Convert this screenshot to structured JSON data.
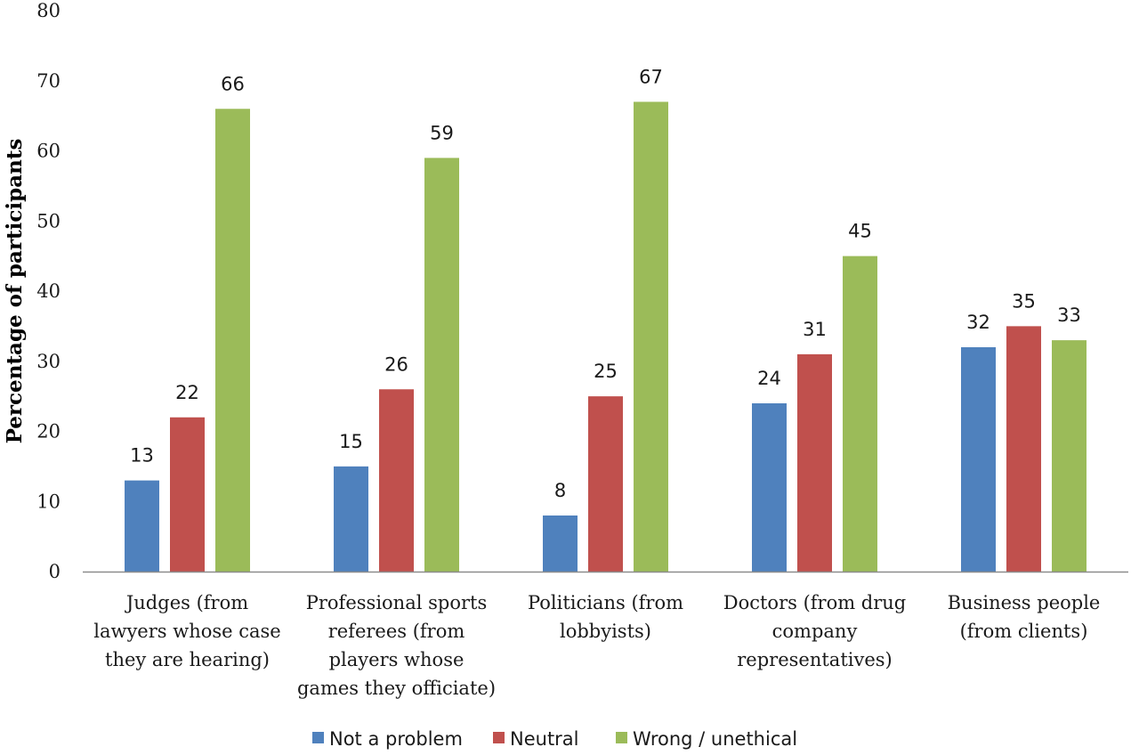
{
  "chart_data": {
    "type": "bar",
    "title": "",
    "xlabel": "",
    "ylabel": "Percentage of participants",
    "ylim": [
      0,
      80
    ],
    "yticks": [
      0,
      10,
      20,
      30,
      40,
      50,
      60,
      70,
      80
    ],
    "grid": false,
    "legend_position": "bottom",
    "categories": [
      [
        "Judges (from",
        "lawyers whose case",
        "they are hearing)"
      ],
      [
        "Professional sports",
        "referees (from",
        "players whose",
        "games they officiate)"
      ],
      [
        "Politicians (from",
        "lobbyists)"
      ],
      [
        "Doctors (from drug",
        "company",
        "representatives)"
      ],
      [
        "Business people",
        "(from clients)"
      ]
    ],
    "series": [
      {
        "name": "Not a problem",
        "color": "#4f81bd",
        "values": [
          13,
          15,
          8,
          24,
          32
        ]
      },
      {
        "name": "Neutral",
        "color": "#c0504d",
        "values": [
          22,
          26,
          25,
          31,
          35
        ]
      },
      {
        "name": "Wrong / unethical",
        "color": "#9bbb59",
        "values": [
          66,
          59,
          67,
          45,
          33
        ]
      }
    ]
  }
}
